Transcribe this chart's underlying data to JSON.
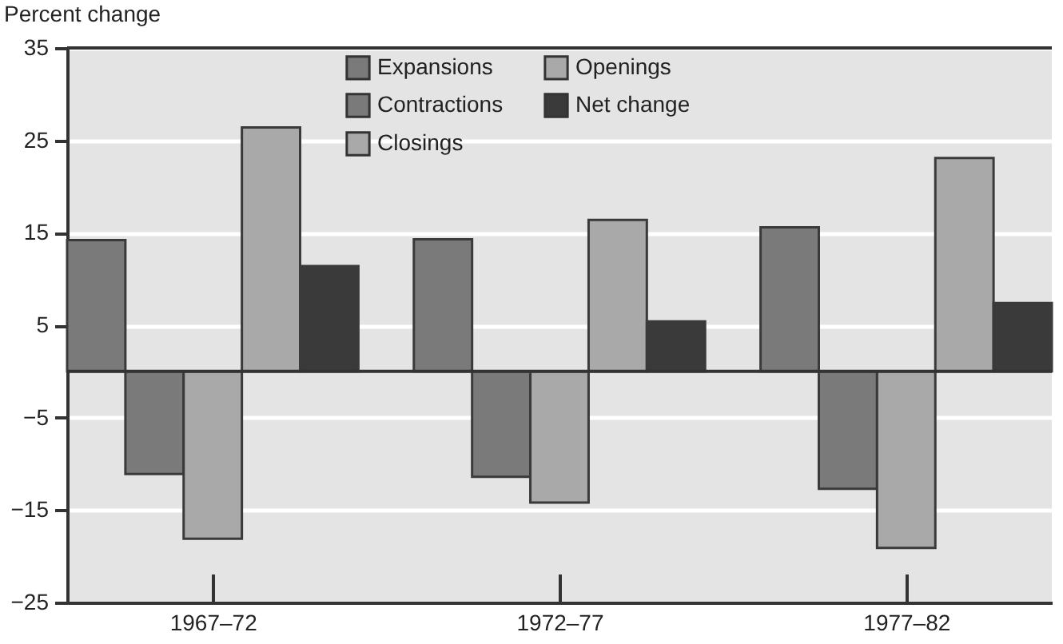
{
  "chart_data": {
    "type": "bar",
    "ylabel": "Percent change",
    "categories": [
      "1967–72",
      "1972–77",
      "1977–82"
    ],
    "series": [
      {
        "name": "Expansions",
        "color": "#7a7a7a",
        "values": [
          14.2,
          14.3,
          15.6
        ]
      },
      {
        "name": "Contractions",
        "color": "#7a7a7a",
        "values": [
          -11.1,
          -11.4,
          -12.7
        ]
      },
      {
        "name": "Closings",
        "color": "#a9a9a9",
        "values": [
          -18.1,
          -14.2,
          -19.1
        ]
      },
      {
        "name": "Openings",
        "color": "#a9a9a9",
        "values": [
          26.4,
          16.4,
          23.1
        ]
      },
      {
        "name": "Net change",
        "color": "#3a3a3a",
        "values": [
          11.4,
          5.4,
          7.4
        ]
      }
    ],
    "ylim": [
      -25,
      35
    ],
    "yticks": [
      -25,
      -15,
      -5,
      5,
      15,
      25,
      35
    ],
    "grid": "y",
    "legend": "top"
  }
}
